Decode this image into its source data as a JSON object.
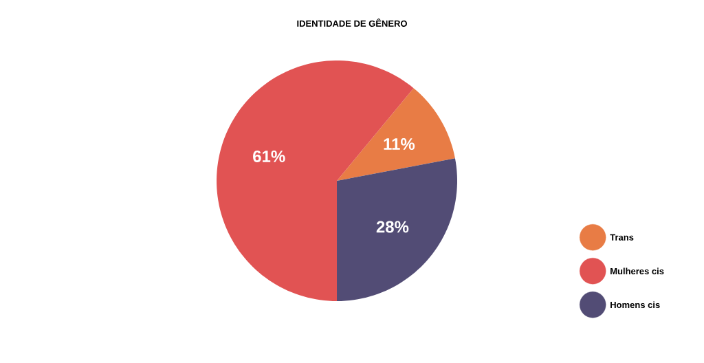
{
  "chart_data": {
    "type": "pie",
    "title": "IDENTIDADE DE GÊNERO",
    "categories": [
      "Trans",
      "Mulheres cis",
      "Homens cis"
    ],
    "values": [
      11,
      61,
      28
    ],
    "colors": [
      "#e87c45",
      "#e15353",
      "#524c75"
    ],
    "value_labels": [
      "11%",
      "61%",
      "28%"
    ],
    "legend": "bottom right"
  }
}
